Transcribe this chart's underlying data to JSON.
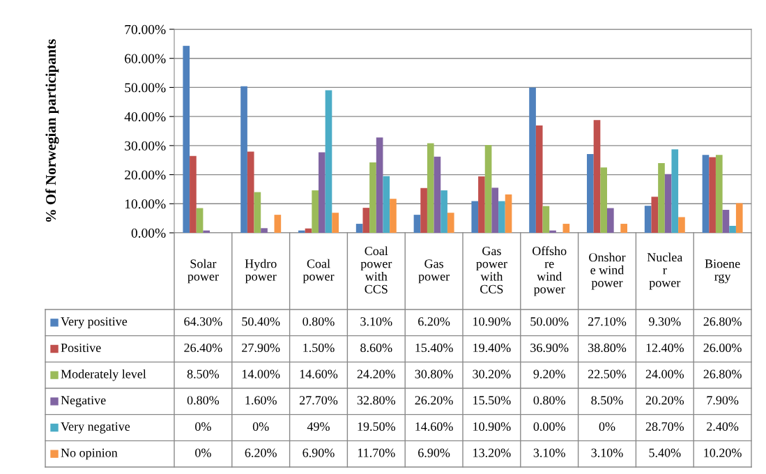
{
  "chart_data": {
    "type": "bar",
    "ylabel": "% Of Norwegian participants",
    "categories": [
      "Solar\npower",
      "Hydro\npower",
      "Coal\npower",
      "Coal\npower\nwith\nCCS",
      "Gas\npower",
      "Gas\npower\nwith\nCCS",
      "Offsho\nre\nwind\npower",
      "Onshor\ne wind\npower",
      "Nuclea\nr\npower",
      "Bioene\nrgy"
    ],
    "series": [
      {
        "name": "Very positive",
        "color": "#4f81bd",
        "values": [
          64.3,
          50.4,
          0.8,
          3.1,
          6.2,
          10.9,
          50.0,
          27.1,
          9.3,
          26.8
        ],
        "value_labels": [
          "64.30%",
          "50.40%",
          "0.80%",
          "3.10%",
          "6.20%",
          "10.90%",
          "50.00%",
          "27.10%",
          "9.30%",
          "26.80%"
        ]
      },
      {
        "name": "Positive",
        "color": "#c0504d",
        "values": [
          26.4,
          27.9,
          1.5,
          8.6,
          15.4,
          19.4,
          36.9,
          38.8,
          12.4,
          26.0
        ],
        "value_labels": [
          "26.40%",
          "27.90%",
          "1.50%",
          "8.60%",
          "15.40%",
          "19.40%",
          "36.90%",
          "38.80%",
          "12.40%",
          "26.00%"
        ]
      },
      {
        "name": "Moderately level",
        "color": "#9bbb59",
        "values": [
          8.5,
          14.0,
          14.6,
          24.2,
          30.8,
          30.2,
          9.2,
          22.5,
          24.0,
          26.8
        ],
        "value_labels": [
          "8.50%",
          "14.00%",
          "14.60%",
          "24.20%",
          "30.80%",
          "30.20%",
          "9.20%",
          "22.50%",
          "24.00%",
          "26.80%"
        ]
      },
      {
        "name": "Negative",
        "color": "#8064a2",
        "values": [
          0.8,
          1.6,
          27.7,
          32.8,
          26.2,
          15.5,
          0.8,
          8.5,
          20.2,
          7.9
        ],
        "value_labels": [
          "0.80%",
          "1.60%",
          "27.70%",
          "32.80%",
          "26.20%",
          "15.50%",
          "0.80%",
          "8.50%",
          "20.20%",
          "7.90%"
        ]
      },
      {
        "name": "Very negative",
        "color": "#4bacc6",
        "values": [
          0,
          0,
          49,
          19.5,
          14.6,
          10.9,
          0.0,
          0,
          28.7,
          2.4
        ],
        "value_labels": [
          "0%",
          "0%",
          "49%",
          "19.50%",
          "14.60%",
          "10.90%",
          "0.00%",
          "0%",
          "28.70%",
          "2.40%"
        ]
      },
      {
        "name": "No opinion",
        "color": "#f79646",
        "values": [
          0,
          6.2,
          6.9,
          11.7,
          6.9,
          13.2,
          3.1,
          3.1,
          5.4,
          10.2
        ],
        "value_labels": [
          "0%",
          "6.20%",
          "6.90%",
          "11.70%",
          "6.90%",
          "13.20%",
          "3.10%",
          "3.10%",
          "5.40%",
          "10.20%"
        ]
      }
    ],
    "ylim": [
      0,
      70
    ],
    "yticks": [
      {
        "value": 0,
        "label": "0.00%"
      },
      {
        "value": 10,
        "label": "10.00%"
      },
      {
        "value": 20,
        "label": "20.00%"
      },
      {
        "value": 30,
        "label": "30.00%"
      },
      {
        "value": 40,
        "label": "40.00%"
      },
      {
        "value": 50,
        "label": "50.00%"
      },
      {
        "value": 60,
        "label": "60.00%"
      },
      {
        "value": 70,
        "label": "70.00%"
      }
    ],
    "grid": "y",
    "legend": "bottom"
  }
}
